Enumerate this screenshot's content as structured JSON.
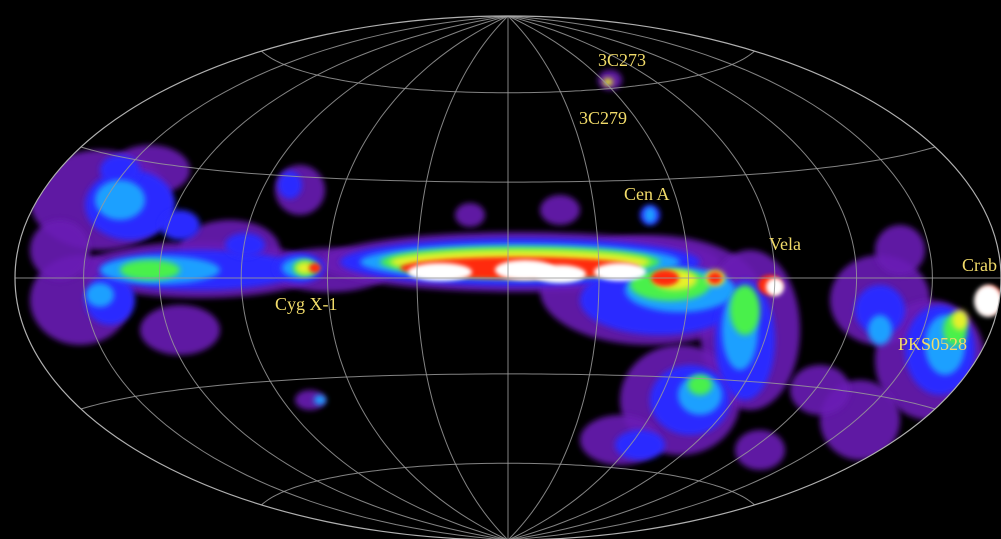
{
  "map": {
    "projection": "aitoff-equal-area",
    "coordinate_system": "galactic",
    "background_color": "#000000",
    "grid_color": "#9a9a9a",
    "label_color": "#f2dc6a",
    "color_scale": [
      "#3a0a6e",
      "#6a1bb5",
      "#2a2cff",
      "#1ea0ff",
      "#2ee6c8",
      "#48f04c",
      "#e6f02a",
      "#ff9a1a",
      "#ff2a10",
      "#ffffff"
    ],
    "sources": [
      {
        "id": "3c273",
        "label": "3C273"
      },
      {
        "id": "3c279",
        "label": "3C279"
      },
      {
        "id": "cen-a",
        "label": "Cen A"
      },
      {
        "id": "vela",
        "label": "Vela"
      },
      {
        "id": "crab",
        "label": "Crab"
      },
      {
        "id": "cyg-x-1",
        "label": "Cyg X-1"
      },
      {
        "id": "pks0528",
        "label": "PKS0528"
      }
    ]
  }
}
